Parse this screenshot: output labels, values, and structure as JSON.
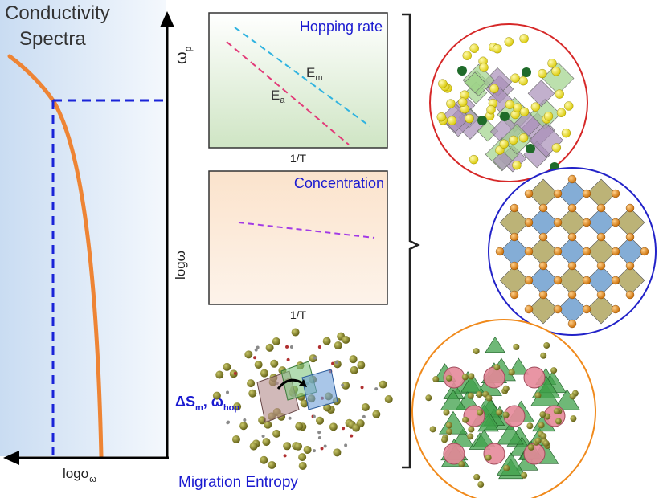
{
  "left_panel": {
    "title_line1": "Conductivity",
    "title_line2": "Spectra",
    "x_axis_label": "logσ",
    "x_axis_sub": "ω",
    "y_axis_label": "logω",
    "y_marker_label": "ω",
    "y_marker_sub": "p"
  },
  "hopping_panel": {
    "title": "Hopping rate",
    "xlabel": "1/T",
    "line1_label": "E",
    "line1_sub": "m",
    "line2_label": "E",
    "line2_sub": "a"
  },
  "concentration_panel": {
    "title": "Concentration",
    "xlabel": "1/T"
  },
  "migration": {
    "label": "ΔS",
    "label_sub": "m",
    "label_sep": ", ω",
    "label_sub2": "hop",
    "caption": "Migration Entropy"
  },
  "colors": {
    "curve": "#ee8434",
    "dashed_marker": "#1a24d8",
    "label_blue": "#1a1ad0",
    "circle_top": "#d62828",
    "circle_middle": "#2222c8",
    "circle_bottom": "#f08a1c",
    "hopping_line_1": "#2fb3e0",
    "hopping_line_2": "#e23a78",
    "concentration_line": "#a23ae6"
  }
}
